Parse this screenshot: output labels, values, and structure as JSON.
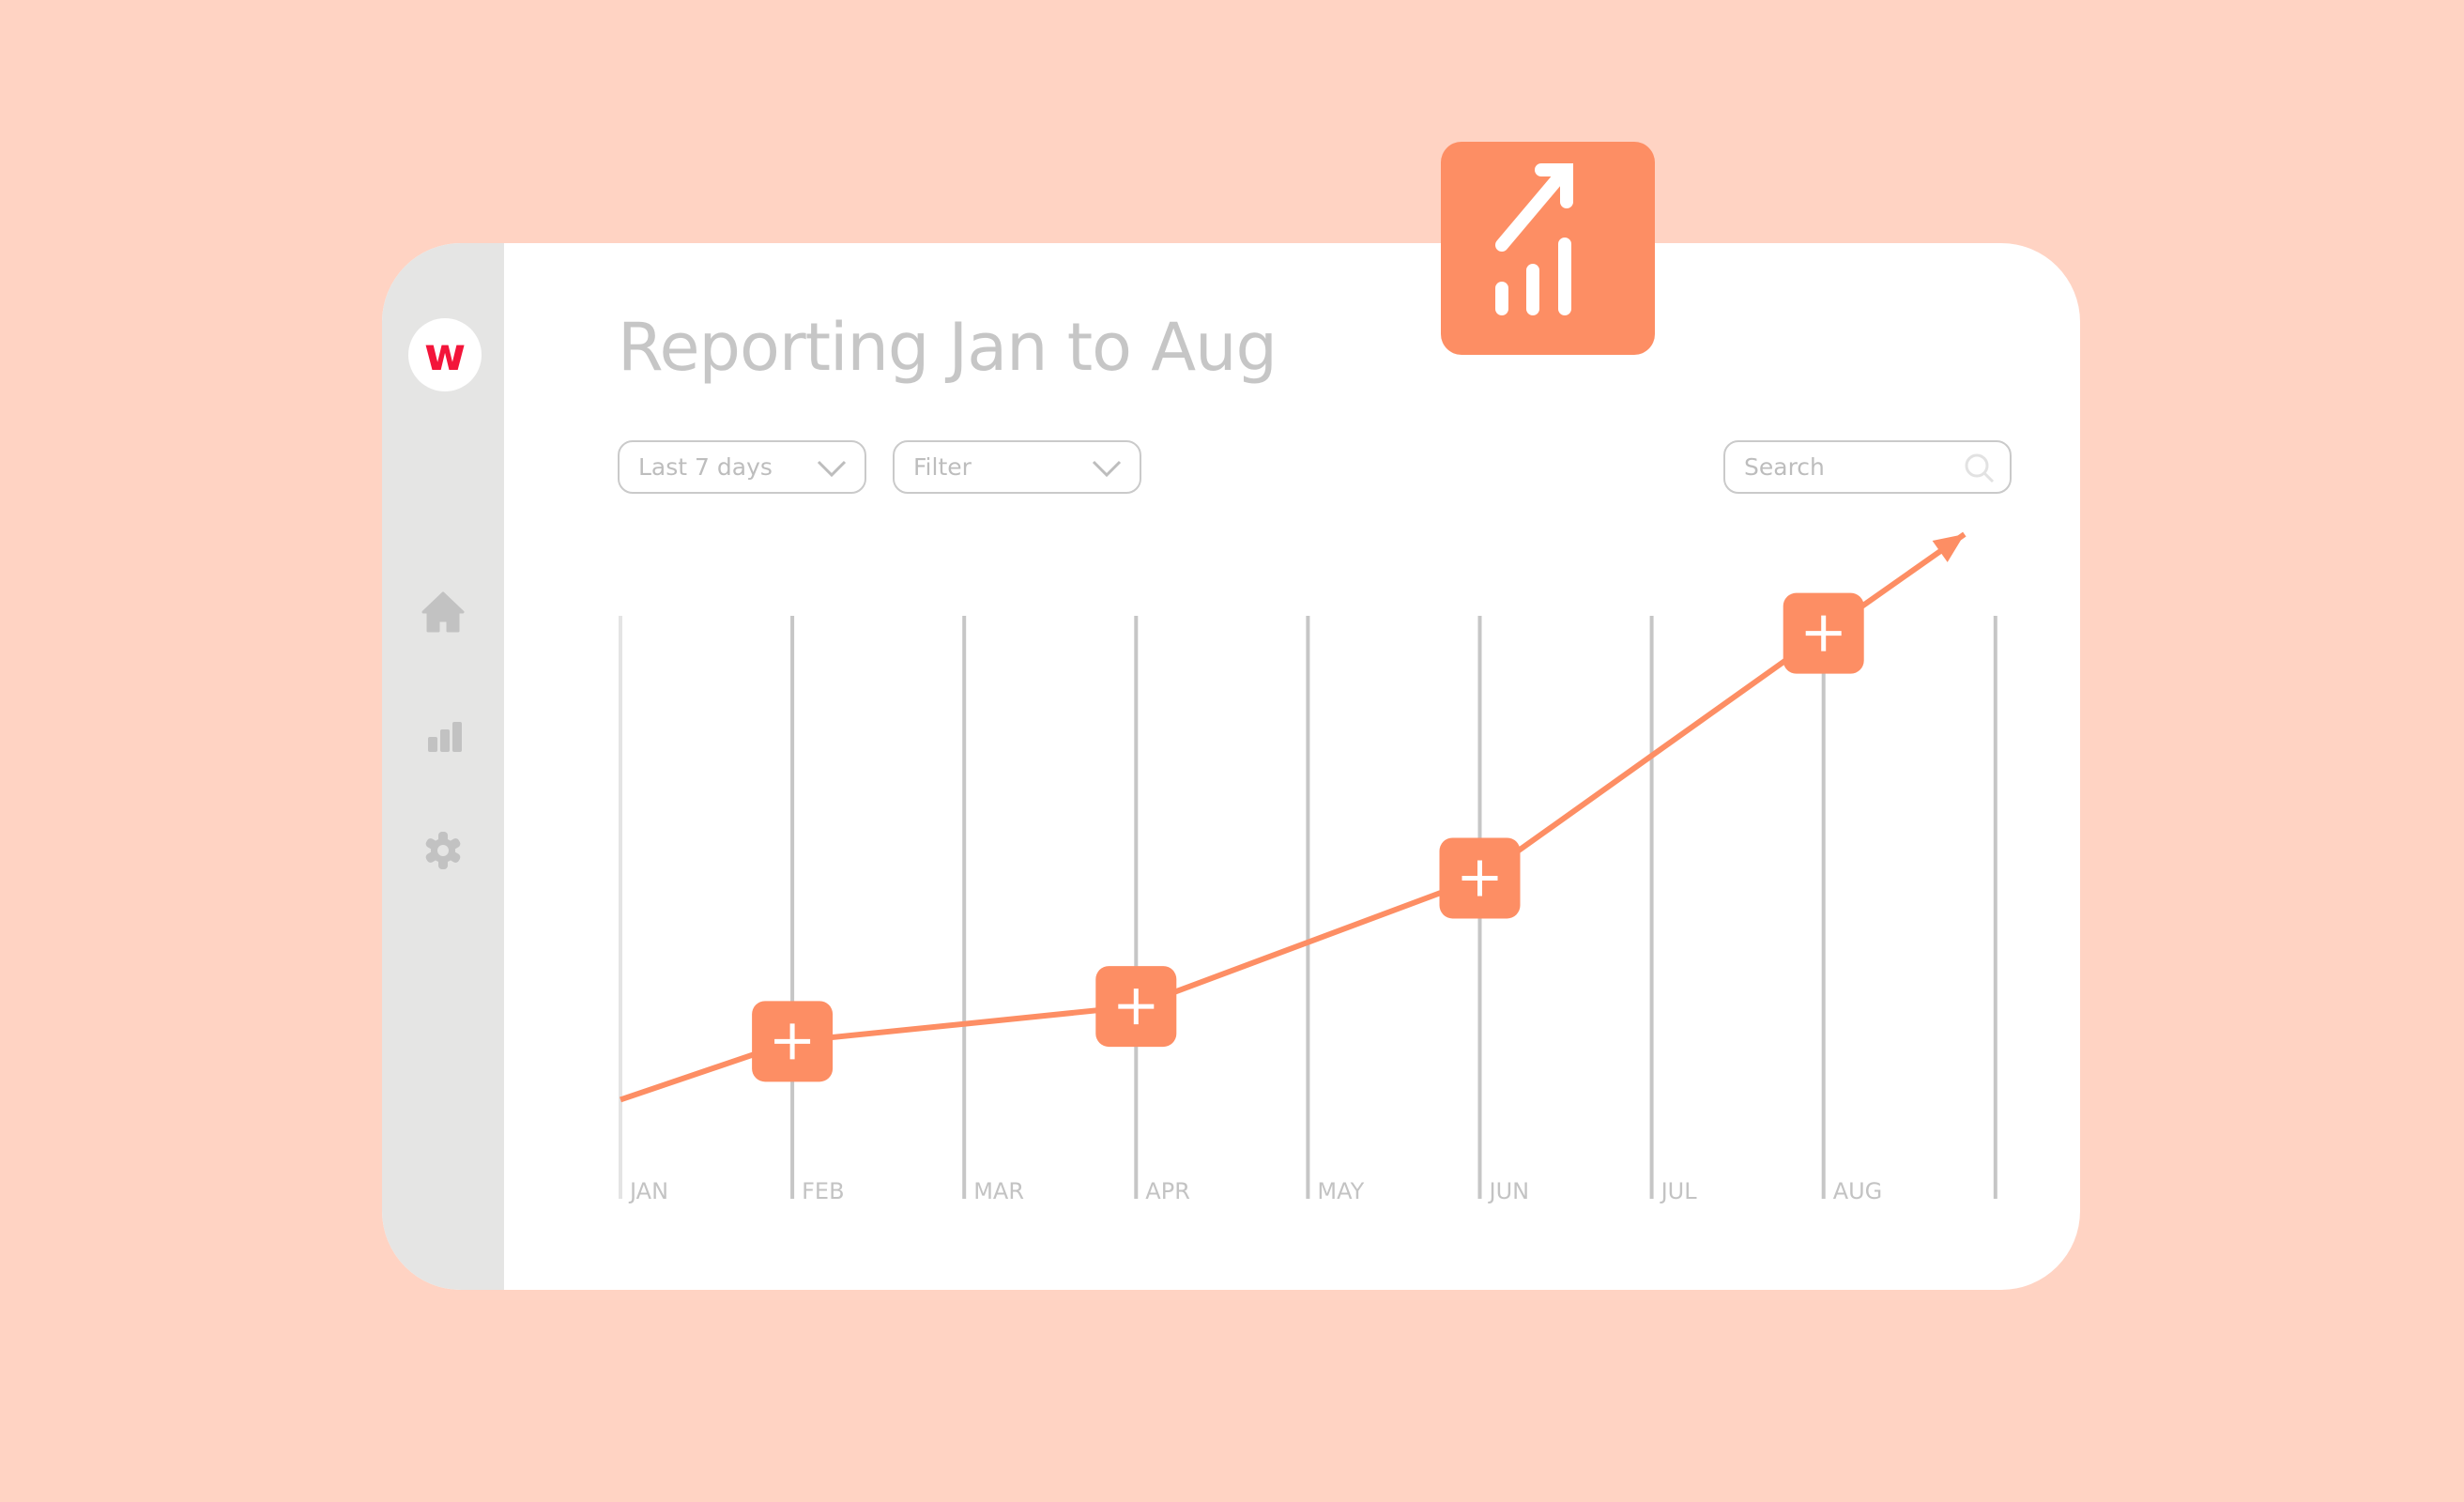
{
  "logo": {
    "letter": "w",
    "color": "#F3153A"
  },
  "sidebar": {
    "items": [
      {
        "icon": "home-icon"
      },
      {
        "icon": "bar-chart-icon"
      },
      {
        "icon": "gear-icon"
      }
    ]
  },
  "header": {
    "title": "Reporting Jan to Aug"
  },
  "toolbar": {
    "period_select": {
      "value": "Last 7 days"
    },
    "filter_select": {
      "value": "Filter"
    },
    "search": {
      "placeholder": "Search"
    }
  },
  "badge": {
    "icon": "trending-up-chart-icon",
    "color": "#FD8E64"
  },
  "colors": {
    "background": "#FFD3C3",
    "accent": "#FD8E64",
    "sidebar": "#E5E5E4",
    "gridline": "#C6C6C6"
  },
  "chart_data": {
    "type": "line",
    "categories": [
      "JAN",
      "FEB",
      "MAR",
      "APR",
      "MAY",
      "JUN",
      "JUL",
      "AUG"
    ],
    "series": [
      {
        "points": [
          {
            "x": 0,
            "y": 0.17,
            "marker": false
          },
          {
            "x": 1,
            "y": 0.27,
            "marker": true
          },
          {
            "x": 3,
            "y": 0.33,
            "marker": true
          },
          {
            "x": 5,
            "y": 0.55,
            "marker": true
          },
          {
            "x": 7,
            "y": 0.97,
            "marker": true
          },
          {
            "x": 7.82,
            "y": 1.14,
            "marker": false,
            "arrow": true
          }
        ]
      }
    ],
    "ylim": [
      0,
      1
    ],
    "grid": "vertical",
    "marker_icon": "plus-icon"
  }
}
